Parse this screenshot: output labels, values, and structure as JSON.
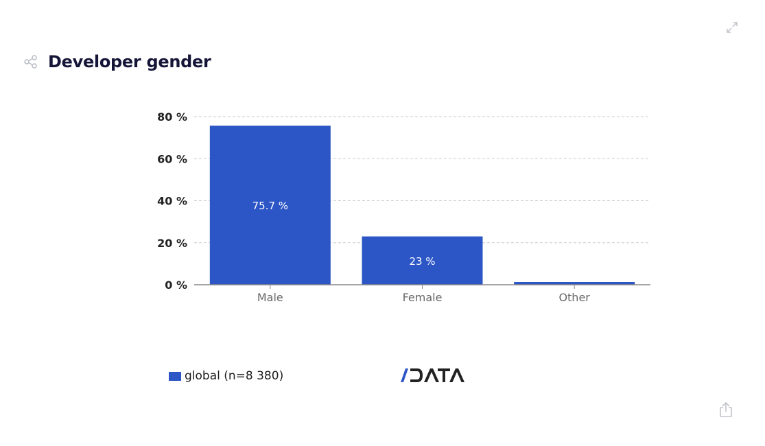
{
  "header": {
    "title": "Developer gender"
  },
  "icons": {
    "share": "share-icon",
    "expand": "expand-icon",
    "export": "export-icon"
  },
  "colors": {
    "bar": "#2c56c6",
    "title": "#151538",
    "grid": "#cccccc",
    "axis": "#888888"
  },
  "legend": {
    "label": "global (n=8 380)"
  },
  "logo": {
    "text": "/DATA"
  },
  "chart_data": {
    "type": "bar",
    "title": "Developer gender",
    "categories": [
      "Male",
      "Female",
      "Other"
    ],
    "series": [
      {
        "name": "global (n=8 380)",
        "values": [
          75.7,
          23,
          1.3
        ]
      }
    ],
    "data_labels": [
      "75.7 %",
      "23 %",
      ""
    ],
    "xlabel": "",
    "ylabel": "",
    "ylim": [
      0,
      80
    ],
    "yticks": [
      0,
      20,
      40,
      60,
      80
    ],
    "ytick_labels": [
      "0 %",
      "20 %",
      "40 %",
      "60 %",
      "80 %"
    ],
    "grid": true,
    "legend_position": "bottom-left"
  }
}
